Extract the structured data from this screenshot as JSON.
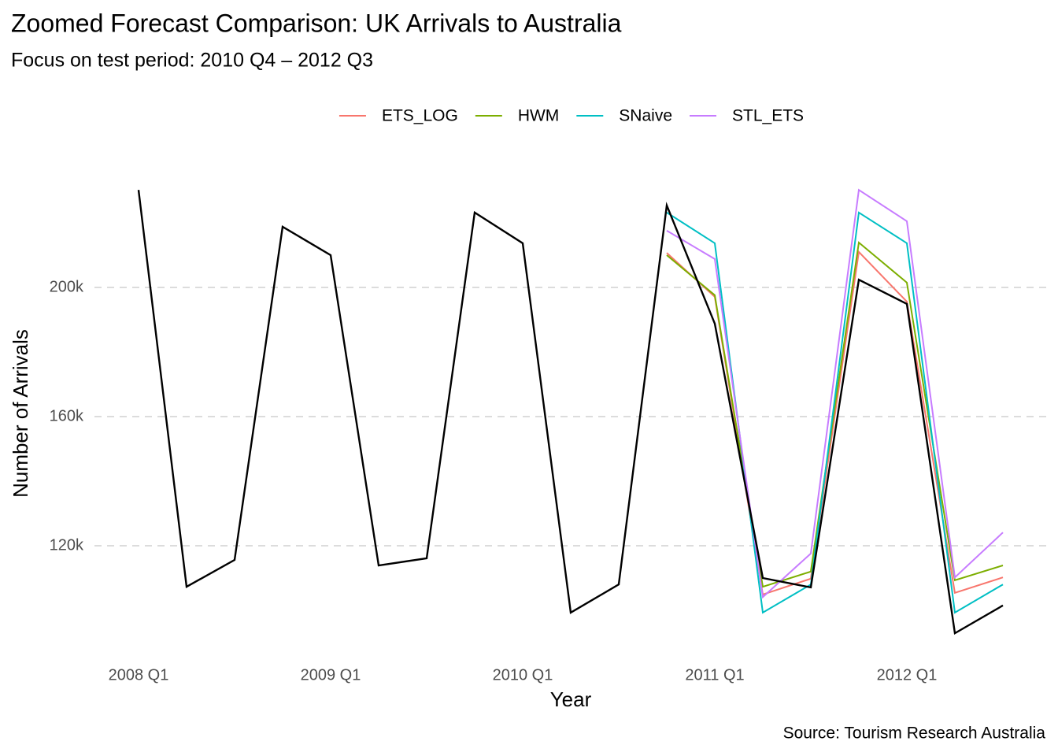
{
  "chart_data": {
    "type": "line",
    "title": "Zoomed Forecast Comparison: UK Arrivals to Australia",
    "subtitle": "Focus on test period: 2010 Q4 – 2012 Q3",
    "x_label": "Year",
    "y_label": "Number of Arrivals",
    "caption": "Source: Tourism Research Australia",
    "categories": [
      "2008 Q1",
      null,
      null,
      null,
      "2009 Q1",
      null,
      null,
      null,
      "2010 Q1",
      null,
      null,
      null,
      "2011 Q1",
      null,
      null,
      null,
      "2012 Q1",
      null,
      null
    ],
    "series": [
      {
        "color": "#000000",
        "values": [
          230200,
          107300,
          115600,
          218800,
          210000,
          113900,
          116100,
          223200,
          213700,
          99300,
          108000,
          225400,
          188800,
          110000,
          107100,
          202400,
          194900,
          92900,
          101500
        ]
      },
      {
        "name": "ETS_LOG",
        "color": "#F8766D",
        "values": [
          null,
          null,
          null,
          null,
          null,
          null,
          null,
          null,
          null,
          null,
          null,
          210700,
          197100,
          104900,
          109800,
          211000,
          195600,
          105400,
          110200
        ]
      },
      {
        "name": "HWM",
        "color": "#7CAE00",
        "values": [
          null,
          null,
          null,
          null,
          null,
          null,
          null,
          null,
          null,
          null,
          null,
          210000,
          197600,
          107300,
          112000,
          213900,
          201500,
          109300,
          113900
        ]
      },
      {
        "name": "SNaive",
        "color": "#00BFC4",
        "values": [
          null,
          null,
          null,
          null,
          null,
          null,
          null,
          null,
          null,
          null,
          null,
          223200,
          213700,
          99300,
          108000,
          223200,
          213700,
          99300,
          108000
        ]
      },
      {
        "name": "STL_ETS",
        "color": "#C77CFF",
        "values": [
          null,
          null,
          null,
          null,
          null,
          null,
          null,
          null,
          null,
          null,
          null,
          217600,
          208800,
          104100,
          117600,
          230200,
          220500,
          110200,
          124100
        ]
      }
    ],
    "ylim": [
      88000,
      235000
    ],
    "yticks": [
      {
        "value": 120000,
        "label": "120k"
      },
      {
        "value": 160000,
        "label": "160k"
      },
      {
        "value": 200000,
        "label": "200k"
      }
    ],
    "grid": true,
    "legend": "top"
  }
}
